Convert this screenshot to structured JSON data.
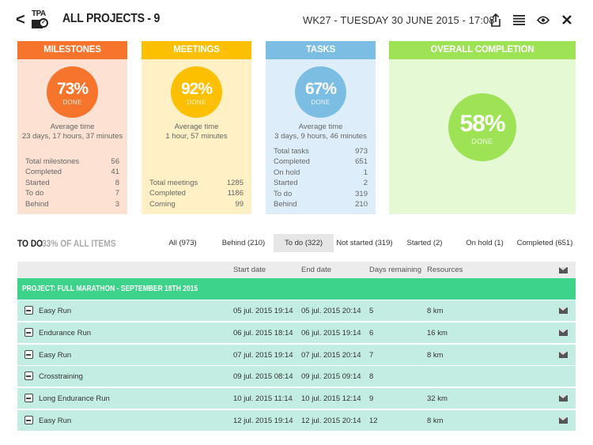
{
  "header": {
    "back_glyph": "<",
    "logo_text": "TPA",
    "title": "ALL PROJECTS - 9",
    "datetime": "WK27 - TUESDAY 30 JUNE 2015 - 17:08",
    "icons": [
      "share-icon",
      "list-icon",
      "eye-icon",
      "close-icon"
    ]
  },
  "cards": {
    "milestones": {
      "title": "MILESTONES",
      "percent": "73%",
      "done": "DONE",
      "avg_label": "Average time",
      "avg_value": "23 days, 17 hours, 37 minutes",
      "stats": [
        {
          "label": "Total milestones",
          "value": "56"
        },
        {
          "label": "Completed",
          "value": "41"
        },
        {
          "label": "Started",
          "value": "8"
        },
        {
          "label": "To do",
          "value": "7"
        },
        {
          "label": "Behind",
          "value": "3"
        }
      ],
      "header_color": "#f7742c",
      "bg_color": "#fde1d2",
      "circle_color": "#f7742c"
    },
    "meetings": {
      "title": "MEETINGS",
      "percent": "92%",
      "done": "DONE",
      "avg_label": "Average time",
      "avg_value": "1 hour, 57 minutes",
      "stats": [
        {
          "label": "Total meetings",
          "value": "1285"
        },
        {
          "label": "Completed",
          "value": "1186"
        },
        {
          "label": "Coming",
          "value": "99"
        }
      ],
      "header_color": "#fdc000",
      "bg_color": "#fff0c5",
      "circle_color": "#fdc000"
    },
    "tasks": {
      "title": "TASKS",
      "percent": "67%",
      "done": "DONE",
      "avg_label": "Average time",
      "avg_value": "3 days, 9 hours, 46 minutes",
      "stats": [
        {
          "label": "Total tasks",
          "value": "973"
        },
        {
          "label": "Completed",
          "value": "651"
        },
        {
          "label": "On hold",
          "value": "1"
        },
        {
          "label": "Started",
          "value": "2"
        },
        {
          "label": "To do",
          "value": "319"
        },
        {
          "label": "Behind",
          "value": "210"
        }
      ],
      "header_color": "#7cbde3",
      "bg_color": "#ddeefa",
      "circle_color": "#7cbde3"
    },
    "overall": {
      "title": "OVERALL COMPLETION",
      "percent": "58%",
      "done": "DONE",
      "header_color": "#9ee356",
      "bg_color": "#e4f9d4",
      "circle_color": "#9ee356"
    }
  },
  "filter": {
    "label": "TO DO",
    "subtitle": "33% OF ALL ITEMS",
    "tabs": [
      {
        "label": "All (973)"
      },
      {
        "label": "Behind (210)"
      },
      {
        "label": "To do (322)"
      },
      {
        "label": "Not started (319)"
      },
      {
        "label": "Started (2)"
      },
      {
        "label": "On hold (1)"
      },
      {
        "label": "Completed (651)"
      }
    ],
    "active_index": 2
  },
  "table": {
    "columns": [
      "Start date",
      "End date",
      "Days remaining",
      "Resources"
    ],
    "project": "PROJECT: FULL MARATHON - SEPTEMBER 18TH 2015",
    "rows": [
      {
        "name": "Easy Run",
        "start": "05 jul. 2015 19:14",
        "end": "05 jul. 2015 20:14",
        "days": "5",
        "resources": "8 km",
        "mail": true
      },
      {
        "name": "Endurance Run",
        "start": "06 jul. 2015 18:14",
        "end": "06 jul. 2015 19:14",
        "days": "6",
        "resources": "16 km",
        "mail": true
      },
      {
        "name": "Easy Run",
        "start": "07 jul. 2015 19:14",
        "end": "07 jul. 2015 20:14",
        "days": "7",
        "resources": "8 km",
        "mail": true
      },
      {
        "name": "Crosstraining",
        "start": "09 jul. 2015 08:14",
        "end": "09 jul. 2015 09:14",
        "days": "8",
        "resources": "",
        "mail": false
      },
      {
        "name": "Long Endurance Run",
        "start": "10 jul. 2015 11:14",
        "end": "10 jul. 2015 12:14",
        "days": "9",
        "resources": "32 km",
        "mail": true
      },
      {
        "name": "Easy Run",
        "start": "12 jul. 2015 19:14",
        "end": "12 jul. 2015 20:14",
        "days": "12",
        "resources": "8 km",
        "mail": true
      }
    ]
  }
}
